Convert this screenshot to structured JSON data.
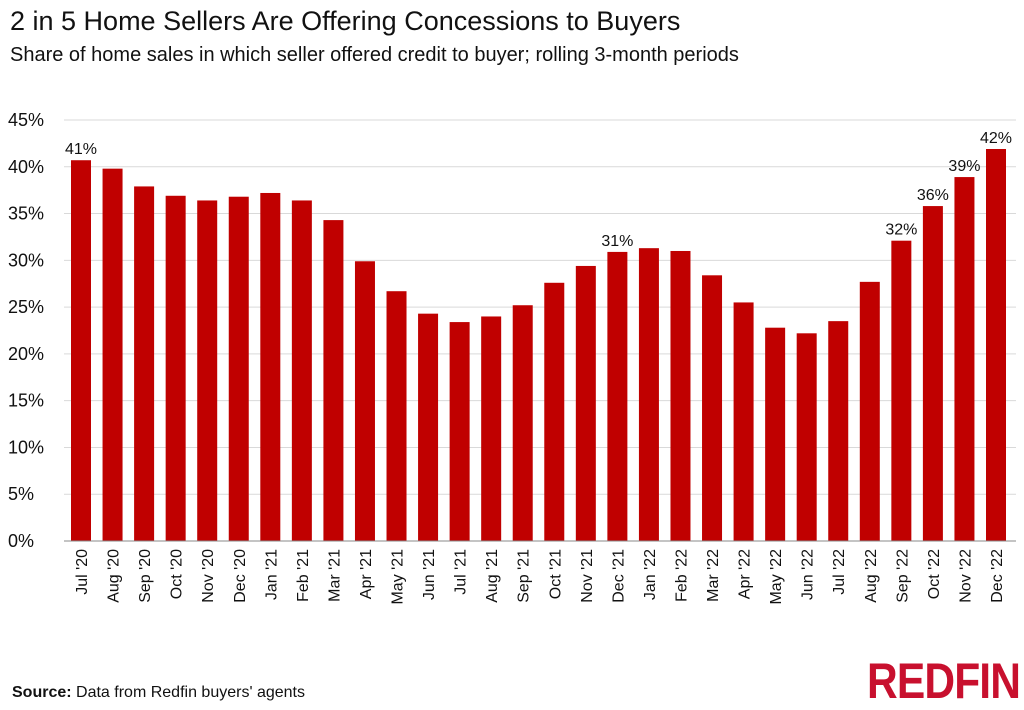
{
  "chart_data": {
    "type": "bar",
    "title": "2 in 5 Home Sellers Are Offering Concessions to Buyers",
    "subtitle": "Share of home sales in which seller offered credit to buyer; rolling 3-month periods",
    "categories": [
      "Jul '20",
      "Aug '20",
      "Sep '20",
      "Oct '20",
      "Nov '20",
      "Dec '20",
      "Jan '21",
      "Feb '21",
      "Mar '21",
      "Apr '21",
      "May '21",
      "Jun '21",
      "Jul '21",
      "Aug '21",
      "Sep '21",
      "Oct '21",
      "Nov '21",
      "Dec '21",
      "Jan '22",
      "Feb '22",
      "Mar '22",
      "Apr '22",
      "May '22",
      "Jun '22",
      "Jul '22",
      "Aug '22",
      "Sep '22",
      "Oct '22",
      "Nov '22",
      "Dec '22"
    ],
    "values": [
      40.7,
      39.8,
      37.9,
      36.9,
      36.4,
      36.8,
      37.2,
      36.4,
      34.3,
      29.9,
      26.7,
      24.3,
      23.4,
      24.0,
      25.2,
      27.6,
      29.4,
      30.9,
      31.3,
      31.0,
      28.4,
      25.5,
      22.8,
      22.2,
      23.5,
      27.7,
      32.1,
      35.8,
      38.9,
      41.9
    ],
    "data_labels": {
      "0": "41%",
      "17": "31%",
      "26": "32%",
      "27": "36%",
      "28": "39%",
      "29": "42%"
    },
    "yticks": [
      "0%",
      "5%",
      "10%",
      "15%",
      "20%",
      "25%",
      "30%",
      "35%",
      "40%",
      "45%"
    ],
    "ylim": [
      0,
      45
    ],
    "grid": true,
    "bar_color": "#c00000",
    "xlabel": "",
    "ylabel": ""
  },
  "source": {
    "label": "Source:",
    "text": "Data from Redfin buyers' agents"
  },
  "logo": "REDFIN",
  "brand_color": "#c8102e"
}
